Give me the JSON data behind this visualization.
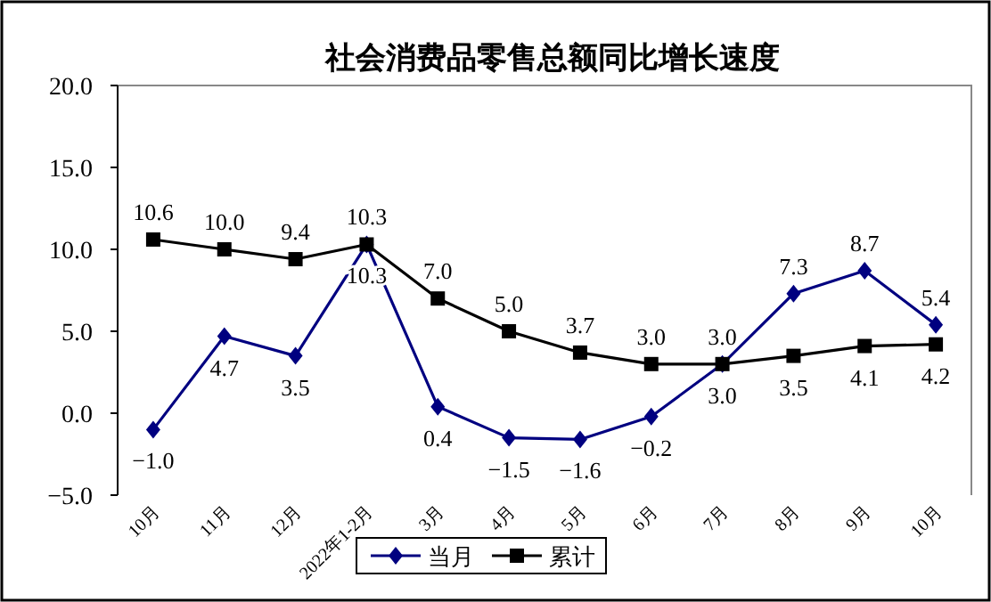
{
  "chart_data": {
    "type": "line",
    "title": "社会消费品零售总额同比增长速度",
    "categories": [
      "10月",
      "11月",
      "12月",
      "2022年1-2月",
      "3月",
      "4月",
      "5月",
      "6月",
      "7月",
      "8月",
      "9月",
      "10月"
    ],
    "series": [
      {
        "name": "当月",
        "color": "#000080",
        "marker": "diamond",
        "values": [
          -1.0,
          4.7,
          3.5,
          10.3,
          0.4,
          -1.5,
          -1.6,
          -0.2,
          3.0,
          7.3,
          8.7,
          5.4
        ],
        "value_labels": [
          "−1.0",
          "4.7",
          "3.5",
          "10.3",
          "0.4",
          "−1.5",
          "−1.6",
          "−0.2",
          "3.0",
          "7.3",
          "8.7",
          "5.4"
        ]
      },
      {
        "name": "累计",
        "color": "#000000",
        "marker": "square",
        "values": [
          10.6,
          10.0,
          9.4,
          10.3,
          7.0,
          5.0,
          3.7,
          3.0,
          3.0,
          3.5,
          4.1,
          4.2
        ],
        "value_labels": [
          "10.6",
          "10.0",
          "9.4",
          "10.3",
          "7.0",
          "5.0",
          "3.7",
          "3.0",
          "3.0",
          "3.5",
          "4.1",
          "4.2"
        ]
      }
    ],
    "ylim": [
      -5,
      20
    ],
    "yticks": [
      {
        "value": -5,
        "label": "−5.0"
      },
      {
        "value": 0,
        "label": "0.0"
      },
      {
        "value": 5,
        "label": "5.0"
      },
      {
        "value": 10,
        "label": "10.0"
      },
      {
        "value": 15,
        "label": "15.0"
      },
      {
        "value": 20,
        "label": "20.0"
      }
    ],
    "grid": false,
    "legend": "bottom",
    "line_style": "solid"
  }
}
